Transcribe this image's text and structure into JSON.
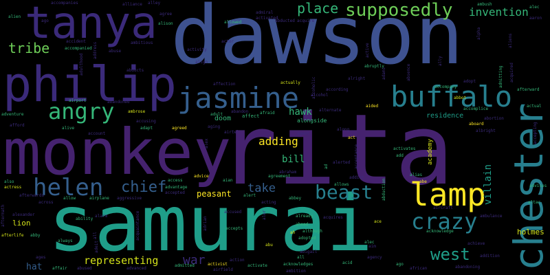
{
  "palette": {
    "background": "#000000",
    "purple": "#45226f",
    "indigo": "#3b2a7a",
    "blue": "#3e5290",
    "slate": "#355f8d",
    "teal": "#277f8e",
    "sea": "#1f9e89",
    "green": "#35b779",
    "lime": "#6ece58",
    "yellow": "#d4e21a",
    "bright": "#fde725"
  },
  "words": [
    {
      "text": "dawson",
      "tone": "blue"
    },
    {
      "text": "rita",
      "tone": "purple"
    },
    {
      "text": "samurai",
      "tone": "sea"
    },
    {
      "text": "monkey",
      "tone": "purple"
    },
    {
      "text": "philip",
      "tone": "indigo"
    },
    {
      "text": "tanya",
      "tone": "indigo"
    },
    {
      "text": "chester",
      "tone": "teal"
    },
    {
      "text": "jasmine",
      "tone": "slate"
    },
    {
      "text": "buffalo",
      "tone": "teal"
    },
    {
      "text": "lamp",
      "tone": "bright"
    },
    {
      "text": "angry",
      "tone": "green"
    },
    {
      "text": "helen",
      "tone": "slate"
    },
    {
      "text": "supposedly",
      "tone": "lime"
    },
    {
      "text": "crazy",
      "tone": "teal"
    },
    {
      "text": "beast",
      "tone": "teal"
    },
    {
      "text": "chief",
      "tone": "slate"
    },
    {
      "text": "west",
      "tone": "sea"
    },
    {
      "text": "tribe",
      "tone": "lime"
    },
    {
      "text": "place",
      "tone": "green"
    },
    {
      "text": "invention",
      "tone": "green"
    },
    {
      "text": "representing",
      "tone": "yellow"
    },
    {
      "text": "adding",
      "tone": "bright"
    },
    {
      "text": "villain",
      "tone": "sea"
    },
    {
      "text": "take",
      "tone": "slate"
    },
    {
      "text": "war",
      "tone": "indigo"
    },
    {
      "text": "hawk",
      "tone": "green"
    },
    {
      "text": "bill",
      "tone": "green"
    },
    {
      "text": "peasant",
      "tone": "bright"
    },
    {
      "text": "hat",
      "tone": "slate"
    },
    {
      "text": "lion",
      "tone": "yellow"
    },
    {
      "text": "holmes",
      "tone": "yellow"
    },
    {
      "text": "doom",
      "tone": "green"
    },
    {
      "text": "residence",
      "tone": "sea"
    },
    {
      "text": "academy",
      "tone": "yellow"
    },
    {
      "text": "alongside",
      "tone": "green"
    },
    {
      "text": "affection",
      "tone": "indigo"
    },
    {
      "text": "accompanies",
      "tone": "indigo"
    },
    {
      "text": "accompanied",
      "tone": "green"
    },
    {
      "text": "accident",
      "tone": "indigo"
    },
    {
      "text": "alliance",
      "tone": "indigo"
    },
    {
      "text": "alley",
      "tone": "indigo"
    },
    {
      "text": "agree",
      "tone": "indigo"
    },
    {
      "text": "admiral",
      "tone": "indigo"
    },
    {
      "text": "activated",
      "tone": "indigo"
    },
    {
      "text": "ambush",
      "tone": "green"
    },
    {
      "text": "aaron",
      "tone": "indigo"
    },
    {
      "text": "allowed",
      "tone": "green"
    },
    {
      "text": "alison",
      "tone": "green"
    },
    {
      "text": "acquire",
      "tone": "indigo"
    },
    {
      "text": "abducted",
      "tone": "indigo"
    },
    {
      "text": "alien",
      "tone": "green"
    },
    {
      "text": "ago",
      "tone": "indigo"
    },
    {
      "text": "ambitious",
      "tone": "indigo"
    },
    {
      "text": "abuse",
      "tone": "indigo"
    },
    {
      "text": "actor",
      "tone": "indigo"
    },
    {
      "text": "activity",
      "tone": "indigo"
    },
    {
      "text": "align",
      "tone": "indigo"
    },
    {
      "text": "actually",
      "tone": "yellow"
    },
    {
      "text": "abruptly",
      "tone": "green"
    },
    {
      "text": "adopt",
      "tone": "indigo"
    },
    {
      "text": "accompany",
      "tone": "green"
    },
    {
      "text": "abbot",
      "tone": "yellow"
    },
    {
      "text": "afterward",
      "tone": "green"
    },
    {
      "text": "actual",
      "tone": "green"
    },
    {
      "text": "airport",
      "tone": "green"
    },
    {
      "text": "abandoned",
      "tone": "indigo"
    },
    {
      "text": "ambrose",
      "tone": "yellow"
    },
    {
      "text": "according",
      "tone": "indigo"
    },
    {
      "text": "alcohol",
      "tone": "indigo"
    },
    {
      "text": "abandon",
      "tone": "indigo"
    },
    {
      "text": "adult",
      "tone": "green"
    },
    {
      "text": "afraid",
      "tone": "green"
    },
    {
      "text": "aided",
      "tone": "bright"
    },
    {
      "text": "alternate",
      "tone": "indigo"
    },
    {
      "text": "accomplice",
      "tone": "green"
    },
    {
      "text": "abortion",
      "tone": "indigo"
    },
    {
      "text": "adventure",
      "tone": "green"
    },
    {
      "text": "alive",
      "tone": "green"
    },
    {
      "text": "agreed",
      "tone": "bright"
    },
    {
      "text": "accusing",
      "tone": "indigo"
    },
    {
      "text": "affect",
      "tone": "green"
    },
    {
      "text": "aging",
      "tone": "indigo"
    },
    {
      "text": "airtel",
      "tone": "indigo"
    },
    {
      "text": "along",
      "tone": "indigo"
    },
    {
      "text": "aboard",
      "tone": "bright"
    },
    {
      "text": "albright",
      "tone": "indigo"
    },
    {
      "text": "afford",
      "tone": "indigo"
    },
    {
      "text": "account",
      "tone": "indigo"
    },
    {
      "text": "adapt",
      "tone": "green"
    },
    {
      "text": "agent",
      "tone": "indigo"
    },
    {
      "text": "act",
      "tone": "bright"
    },
    {
      "text": "activates",
      "tone": "green"
    },
    {
      "text": "add",
      "tone": "green"
    },
    {
      "text": "alerted",
      "tone": "indigo"
    },
    {
      "text": "abraham",
      "tone": "indigo"
    },
    {
      "text": "also",
      "tone": "green"
    },
    {
      "text": "access",
      "tone": "green"
    },
    {
      "text": "advice",
      "tone": "bright"
    },
    {
      "text": "aian",
      "tone": "green"
    },
    {
      "text": "agreement",
      "tone": "green"
    },
    {
      "text": "addict",
      "tone": "indigo"
    },
    {
      "text": "alias",
      "tone": "green"
    },
    {
      "text": "abe",
      "tone": "bright"
    },
    {
      "text": "allows",
      "tone": "green"
    },
    {
      "text": "advises",
      "tone": "green"
    },
    {
      "text": "actress",
      "tone": "yellow"
    },
    {
      "text": "allow",
      "tone": "green"
    },
    {
      "text": "airplane",
      "tone": "green"
    },
    {
      "text": "aggressive",
      "tone": "indigo"
    },
    {
      "text": "advantage",
      "tone": "green"
    },
    {
      "text": "accepted",
      "tone": "indigo"
    },
    {
      "text": "alert",
      "tone": "green"
    },
    {
      "text": "abbey",
      "tone": "green"
    },
    {
      "text": "acting",
      "tone": "indigo"
    },
    {
      "text": "aircraft",
      "tone": "indigo"
    },
    {
      "text": "ambulance",
      "tone": "indigo"
    },
    {
      "text": "altar",
      "tone": "green"
    },
    {
      "text": "afterwards",
      "tone": "indigo"
    },
    {
      "text": "across",
      "tone": "indigo"
    },
    {
      "text": "ability",
      "tone": "green"
    },
    {
      "text": "alexander",
      "tone": "indigo"
    },
    {
      "text": "alarm",
      "tone": "indigo"
    },
    {
      "text": "accused",
      "tone": "indigo"
    },
    {
      "text": "already",
      "tone": "green"
    },
    {
      "text": "acquires",
      "tone": "indigo"
    },
    {
      "text": "ace",
      "tone": "yellow"
    },
    {
      "text": "abby",
      "tone": "green"
    },
    {
      "text": "accepts",
      "tone": "green"
    },
    {
      "text": "ahead",
      "tone": "green"
    },
    {
      "text": "acknowledge",
      "tone": "green"
    },
    {
      "text": "achieve",
      "tone": "indigo"
    },
    {
      "text": "afterlife",
      "tone": "yellow"
    },
    {
      "text": "always",
      "tone": "green"
    },
    {
      "text": "ah",
      "tone": "yellow"
    },
    {
      "text": "although",
      "tone": "green"
    },
    {
      "text": "adopted",
      "tone": "green"
    },
    {
      "text": "alec",
      "tone": "green"
    },
    {
      "text": "abu",
      "tone": "yellow"
    },
    {
      "text": "abigail",
      "tone": "indigo"
    },
    {
      "text": "all",
      "tone": "green"
    },
    {
      "text": "agency",
      "tone": "indigo"
    },
    {
      "text": "addition",
      "tone": "indigo"
    },
    {
      "text": "activist",
      "tone": "bright"
    },
    {
      "text": "action",
      "tone": "indigo"
    },
    {
      "text": "ages",
      "tone": "indigo"
    },
    {
      "text": "abused",
      "tone": "indigo"
    },
    {
      "text": "advanced",
      "tone": "indigo"
    },
    {
      "text": "affair",
      "tone": "green"
    },
    {
      "text": "admitted",
      "tone": "green"
    },
    {
      "text": "airfield",
      "tone": "indigo"
    },
    {
      "text": "activate",
      "tone": "green"
    },
    {
      "text": "acknowledges",
      "tone": "green"
    },
    {
      "text": "ambition",
      "tone": "indigo"
    },
    {
      "text": "acid",
      "tone": "green"
    },
    {
      "text": "ago",
      "tone": "green"
    },
    {
      "text": "african",
      "tone": "indigo"
    },
    {
      "text": "abandoning",
      "tone": "indigo"
    },
    {
      "text": "alec",
      "tone": "green"
    },
    {
      "text": "absence",
      "tone": "indigo"
    },
    {
      "text": "admitting",
      "tone": "green"
    },
    {
      "text": "acquired",
      "tone": "indigo"
    },
    {
      "text": "accepting",
      "tone": "indigo"
    },
    {
      "text": "address",
      "tone": "indigo"
    },
    {
      "text": "alcoholic",
      "tone": "indigo"
    },
    {
      "text": "adams",
      "tone": "indigo"
    },
    {
      "text": "ally",
      "tone": "indigo"
    },
    {
      "text": "acceptance",
      "tone": "indigo"
    },
    {
      "text": "aftermath",
      "tone": "indigo"
    },
    {
      "text": "adrian",
      "tone": "indigo"
    },
    {
      "text": "aler",
      "tone": "indigo"
    },
    {
      "text": "adeit",
      "tone": "indigo"
    },
    {
      "text": "acquaintance",
      "tone": "indigo"
    },
    {
      "text": "active",
      "tone": "green"
    },
    {
      "text": "alpha",
      "tone": "green"
    },
    {
      "text": "ad",
      "tone": "indigo"
    },
    {
      "text": "abduction",
      "tone": "indigo"
    },
    {
      "text": "alright",
      "tone": "indigo"
    },
    {
      "text": "adulthood",
      "tone": "indigo"
    },
    {
      "text": "aliens",
      "tone": "indigo"
    },
    {
      "text": "alex",
      "tone": "indigo"
    },
    {
      "text": "aim",
      "tone": "indigo"
    },
    {
      "text": "abducts",
      "tone": "indigo"
    },
    {
      "text": "all",
      "tone": "indigo"
    }
  ]
}
